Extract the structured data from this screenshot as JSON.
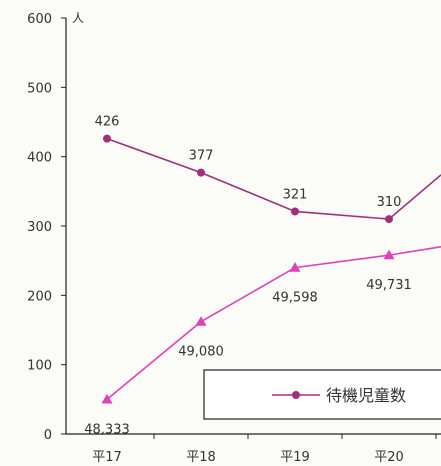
{
  "chart_data": {
    "type": "line",
    "categories": [
      "平17",
      "平18",
      "平19",
      "平20"
    ],
    "ylim": [
      0,
      600
    ],
    "yticks": [
      0,
      100,
      200,
      300,
      400,
      500,
      600
    ],
    "y_unit_label": "人",
    "series": [
      {
        "name": "待機児童数",
        "values": [
          426,
          377,
          321,
          310
        ],
        "labels": [
          "426",
          "377",
          "321",
          "310"
        ],
        "color": "#a0307a",
        "marker": "circle",
        "continues_right": true
      },
      {
        "name": "",
        "values": [
          50,
          162,
          240,
          258
        ],
        "labels": [
          "48,333",
          "49,080",
          "49,598",
          "49,731"
        ],
        "color": "#e040b8",
        "marker": "triangle",
        "continues_right": true
      }
    ],
    "legend": {
      "position": "bottom-right",
      "entries": [
        "待機児童数"
      ]
    },
    "grid": false
  }
}
